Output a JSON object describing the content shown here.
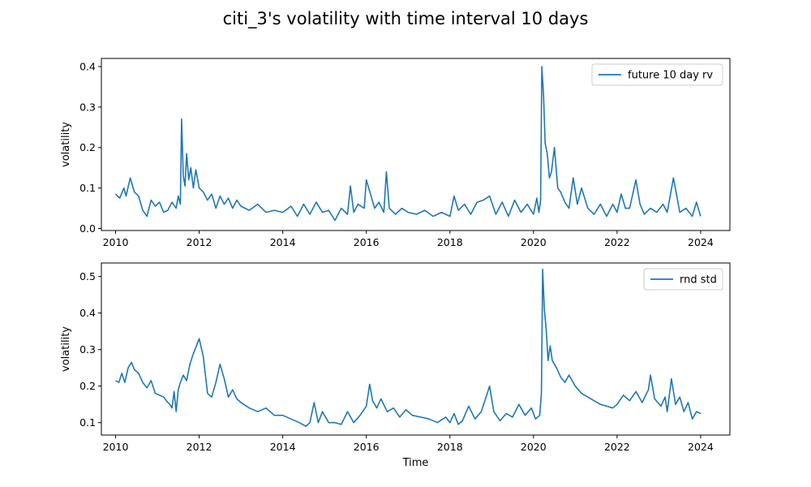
{
  "title": "citi_3's volatility with time interval 10 days",
  "chart_data": [
    {
      "type": "line",
      "xlabel": "",
      "ylabel": "volatility",
      "xlim": [
        2009.66,
        2024.7
      ],
      "ylim": [
        -0.005,
        0.42
      ],
      "xticks": [
        2010,
        2012,
        2014,
        2016,
        2018,
        2020,
        2022,
        2024
      ],
      "xtick_labels": [
        "2010",
        "2012",
        "2014",
        "2016",
        "2018",
        "2020",
        "2022",
        "2024"
      ],
      "yticks": [
        0.0,
        0.1,
        0.2,
        0.3,
        0.4
      ],
      "ytick_labels": [
        "0.0",
        "0.1",
        "0.2",
        "0.3",
        "0.4"
      ],
      "legend_position": "top-right",
      "color": "#1f77b4",
      "series": [
        {
          "name": "future 10 day rv",
          "x": [
            2010.0,
            2010.1,
            2010.2,
            2010.25,
            2010.35,
            2010.45,
            2010.55,
            2010.65,
            2010.75,
            2010.85,
            2010.95,
            2011.05,
            2011.15,
            2011.25,
            2011.35,
            2011.45,
            2011.5,
            2011.55,
            2011.58,
            2011.62,
            2011.66,
            2011.7,
            2011.75,
            2011.8,
            2011.86,
            2011.92,
            2012.0,
            2012.1,
            2012.2,
            2012.3,
            2012.4,
            2012.5,
            2012.6,
            2012.7,
            2012.8,
            2012.9,
            2013.0,
            2013.2,
            2013.4,
            2013.6,
            2013.8,
            2014.0,
            2014.2,
            2014.35,
            2014.5,
            2014.65,
            2014.8,
            2014.95,
            2015.1,
            2015.25,
            2015.4,
            2015.55,
            2015.62,
            2015.7,
            2015.8,
            2015.95,
            2016.0,
            2016.1,
            2016.2,
            2016.3,
            2016.42,
            2016.48,
            2016.55,
            2016.7,
            2016.85,
            2017.0,
            2017.2,
            2017.4,
            2017.6,
            2017.8,
            2018.0,
            2018.1,
            2018.2,
            2018.35,
            2018.5,
            2018.65,
            2018.8,
            2018.95,
            2019.1,
            2019.25,
            2019.4,
            2019.55,
            2019.7,
            2019.85,
            2020.0,
            2020.08,
            2020.13,
            2020.17,
            2020.2,
            2020.24,
            2020.28,
            2020.33,
            2020.38,
            2020.43,
            2020.5,
            2020.58,
            2020.65,
            2020.75,
            2020.85,
            2020.95,
            2021.05,
            2021.15,
            2021.3,
            2021.45,
            2021.6,
            2021.75,
            2021.9,
            2022.0,
            2022.1,
            2022.2,
            2022.3,
            2022.45,
            2022.55,
            2022.65,
            2022.8,
            2022.95,
            2023.1,
            2023.2,
            2023.35,
            2023.5,
            2023.65,
            2023.8,
            2023.9,
            2024.0
          ],
          "y": [
            0.085,
            0.075,
            0.1,
            0.08,
            0.125,
            0.09,
            0.08,
            0.045,
            0.03,
            0.07,
            0.055,
            0.065,
            0.04,
            0.045,
            0.065,
            0.05,
            0.08,
            0.06,
            0.27,
            0.13,
            0.105,
            0.185,
            0.12,
            0.15,
            0.1,
            0.145,
            0.1,
            0.09,
            0.07,
            0.085,
            0.05,
            0.08,
            0.06,
            0.075,
            0.05,
            0.07,
            0.055,
            0.045,
            0.06,
            0.04,
            0.045,
            0.04,
            0.055,
            0.03,
            0.06,
            0.035,
            0.065,
            0.04,
            0.045,
            0.02,
            0.05,
            0.035,
            0.105,
            0.04,
            0.06,
            0.05,
            0.12,
            0.085,
            0.05,
            0.065,
            0.04,
            0.14,
            0.05,
            0.035,
            0.05,
            0.04,
            0.035,
            0.045,
            0.03,
            0.04,
            0.03,
            0.08,
            0.045,
            0.06,
            0.035,
            0.065,
            0.07,
            0.08,
            0.035,
            0.065,
            0.03,
            0.07,
            0.04,
            0.06,
            0.035,
            0.075,
            0.04,
            0.07,
            0.4,
            0.33,
            0.21,
            0.185,
            0.125,
            0.14,
            0.2,
            0.1,
            0.09,
            0.065,
            0.05,
            0.125,
            0.06,
            0.1,
            0.05,
            0.035,
            0.06,
            0.03,
            0.06,
            0.04,
            0.085,
            0.05,
            0.05,
            0.12,
            0.06,
            0.035,
            0.05,
            0.04,
            0.06,
            0.04,
            0.125,
            0.04,
            0.05,
            0.03,
            0.065,
            0.03
          ]
        }
      ]
    },
    {
      "type": "line",
      "xlabel": "Time",
      "ylabel": "volatility",
      "xlim": [
        2009.66,
        2024.7
      ],
      "ylim": [
        0.066,
        0.537
      ],
      "xticks": [
        2010,
        2012,
        2014,
        2016,
        2018,
        2020,
        2022,
        2024
      ],
      "xtick_labels": [
        "2010",
        "2012",
        "2014",
        "2016",
        "2018",
        "2020",
        "2022",
        "2024"
      ],
      "yticks": [
        0.1,
        0.2,
        0.3,
        0.4,
        0.5
      ],
      "ytick_labels": [
        "0.1",
        "0.2",
        "0.3",
        "0.4",
        "0.5"
      ],
      "legend_position": "top-right",
      "color": "#1f77b4",
      "series": [
        {
          "name": "rnd std",
          "x": [
            2010.0,
            2010.08,
            2010.15,
            2010.22,
            2010.3,
            2010.38,
            2010.45,
            2010.55,
            2010.65,
            2010.75,
            2010.85,
            2010.95,
            2011.05,
            2011.15,
            2011.25,
            2011.3,
            2011.35,
            2011.4,
            2011.45,
            2011.5,
            2011.55,
            2011.62,
            2011.7,
            2011.78,
            2011.85,
            2011.9,
            2012.0,
            2012.1,
            2012.2,
            2012.3,
            2012.4,
            2012.5,
            2012.6,
            2012.7,
            2012.8,
            2012.9,
            2013.0,
            2013.2,
            2013.4,
            2013.6,
            2013.8,
            2014.0,
            2014.2,
            2014.4,
            2014.55,
            2014.65,
            2014.75,
            2014.85,
            2014.95,
            2015.1,
            2015.25,
            2015.4,
            2015.55,
            2015.7,
            2015.85,
            2016.0,
            2016.08,
            2016.15,
            2016.25,
            2016.35,
            2016.5,
            2016.65,
            2016.8,
            2016.95,
            2017.1,
            2017.3,
            2017.5,
            2017.7,
            2017.9,
            2018.0,
            2018.1,
            2018.2,
            2018.3,
            2018.45,
            2018.6,
            2018.75,
            2018.85,
            2018.95,
            2019.05,
            2019.2,
            2019.35,
            2019.5,
            2019.65,
            2019.8,
            2019.95,
            2020.05,
            2020.15,
            2020.19,
            2020.22,
            2020.26,
            2020.3,
            2020.35,
            2020.4,
            2020.45,
            2020.55,
            2020.65,
            2020.75,
            2020.85,
            2021.0,
            2021.15,
            2021.3,
            2021.45,
            2021.6,
            2021.75,
            2021.9,
            2022.0,
            2022.15,
            2022.3,
            2022.45,
            2022.6,
            2022.75,
            2022.8,
            2022.9,
            2023.05,
            2023.15,
            2023.2,
            2023.3,
            2023.4,
            2023.5,
            2023.6,
            2023.7,
            2023.8,
            2023.9,
            2024.0
          ],
          "y": [
            0.215,
            0.21,
            0.235,
            0.21,
            0.25,
            0.265,
            0.245,
            0.235,
            0.21,
            0.195,
            0.215,
            0.18,
            0.175,
            0.17,
            0.155,
            0.15,
            0.14,
            0.185,
            0.13,
            0.19,
            0.21,
            0.23,
            0.215,
            0.26,
            0.285,
            0.3,
            0.33,
            0.28,
            0.18,
            0.17,
            0.21,
            0.26,
            0.22,
            0.17,
            0.19,
            0.165,
            0.155,
            0.14,
            0.13,
            0.14,
            0.12,
            0.12,
            0.11,
            0.1,
            0.09,
            0.1,
            0.155,
            0.1,
            0.13,
            0.1,
            0.1,
            0.095,
            0.13,
            0.1,
            0.12,
            0.145,
            0.205,
            0.16,
            0.14,
            0.165,
            0.13,
            0.14,
            0.115,
            0.135,
            0.12,
            0.115,
            0.11,
            0.1,
            0.115,
            0.1,
            0.125,
            0.095,
            0.105,
            0.145,
            0.11,
            0.13,
            0.165,
            0.2,
            0.13,
            0.105,
            0.125,
            0.115,
            0.15,
            0.12,
            0.14,
            0.11,
            0.12,
            0.18,
            0.52,
            0.41,
            0.36,
            0.27,
            0.31,
            0.27,
            0.25,
            0.225,
            0.21,
            0.23,
            0.2,
            0.18,
            0.17,
            0.16,
            0.15,
            0.145,
            0.14,
            0.15,
            0.175,
            0.16,
            0.185,
            0.155,
            0.19,
            0.23,
            0.165,
            0.145,
            0.17,
            0.13,
            0.22,
            0.15,
            0.17,
            0.13,
            0.155,
            0.11,
            0.13,
            0.125
          ]
        }
      ]
    }
  ]
}
